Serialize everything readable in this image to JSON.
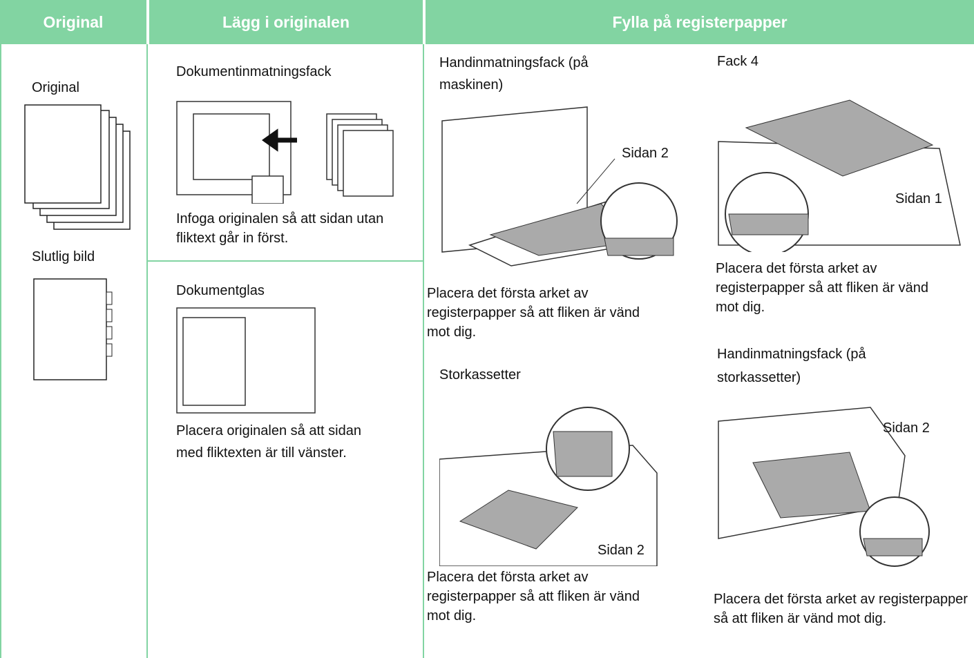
{
  "header": {
    "col1": "Original",
    "col2": "Lägg i originalen",
    "col3": "Fylla på registerpapper"
  },
  "original": {
    "label": "Original",
    "final": "Slutlig bild"
  },
  "load": {
    "feeder": {
      "title": "Dokumentinmatningsfack",
      "caption": "Infoga originalen så att sidan utan fliktext går in först."
    },
    "glass": {
      "title": "Dokumentglas",
      "caption": "Placera originalen så att sidan med fliktexten är till vänster."
    }
  },
  "fill": {
    "bypass": {
      "title": "Handinmatningsfack (på maskinen)",
      "label": "Sidan 2",
      "caption": "Placera det första arket av registerpapper så att fliken är vänd mot dig."
    },
    "tray4": {
      "title": "Fack 4",
      "label": "Sidan 1",
      "caption": "Placera det första arket av registerpapper så att fliken är vänd mot dig."
    },
    "lcc": {
      "title": "Storkassetter",
      "label": "Sidan 2",
      "caption": "Placera det första arket av registerpapper så att fliken är vänd mot dig."
    },
    "lccbypass": {
      "title": "Handinmatningsfack (på storkassetter)",
      "label": "Sidan 2",
      "caption": "Placera det första arket av registerpapper så att fliken är vänd mot dig."
    }
  }
}
